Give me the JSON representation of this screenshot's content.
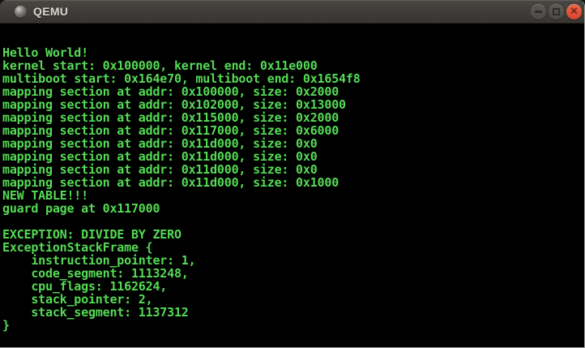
{
  "window": {
    "title": "QEMU",
    "controls": {
      "minimize_label": "minimize",
      "maximize_label": "maximize",
      "close_label": "close",
      "close_glyph": "✕"
    }
  },
  "terminal": {
    "foreground_color": "#55db55",
    "background_color": "#000000",
    "lines": [
      "Hello World!",
      "kernel start: 0x100000, kernel end: 0x11e000",
      "multiboot start: 0x164e70, multiboot end: 0x1654f8",
      "mapping section at addr: 0x100000, size: 0x2000",
      "mapping section at addr: 0x102000, size: 0x13000",
      "mapping section at addr: 0x115000, size: 0x2000",
      "mapping section at addr: 0x117000, size: 0x6000",
      "mapping section at addr: 0x11d000, size: 0x0",
      "mapping section at addr: 0x11d000, size: 0x0",
      "mapping section at addr: 0x11d000, size: 0x0",
      "mapping section at addr: 0x11d000, size: 0x1000",
      "NEW TABLE!!!",
      "guard page at 0x117000",
      "",
      "EXCEPTION: DIVIDE BY ZERO",
      "ExceptionStackFrame {",
      "    instruction_pointer: 1,",
      "    code_segment: 1113248,",
      "    cpu_flags: 1162624,",
      "    stack_pointer: 2,",
      "    stack_segment: 1137312",
      "}"
    ]
  },
  "colors": {
    "titlebar_bg": "#403e3a",
    "titlebar_text": "#dcd8d0",
    "close_button": "#dc4b33",
    "window_border": "#9e9e9e",
    "terminal_green": "#55db55"
  }
}
